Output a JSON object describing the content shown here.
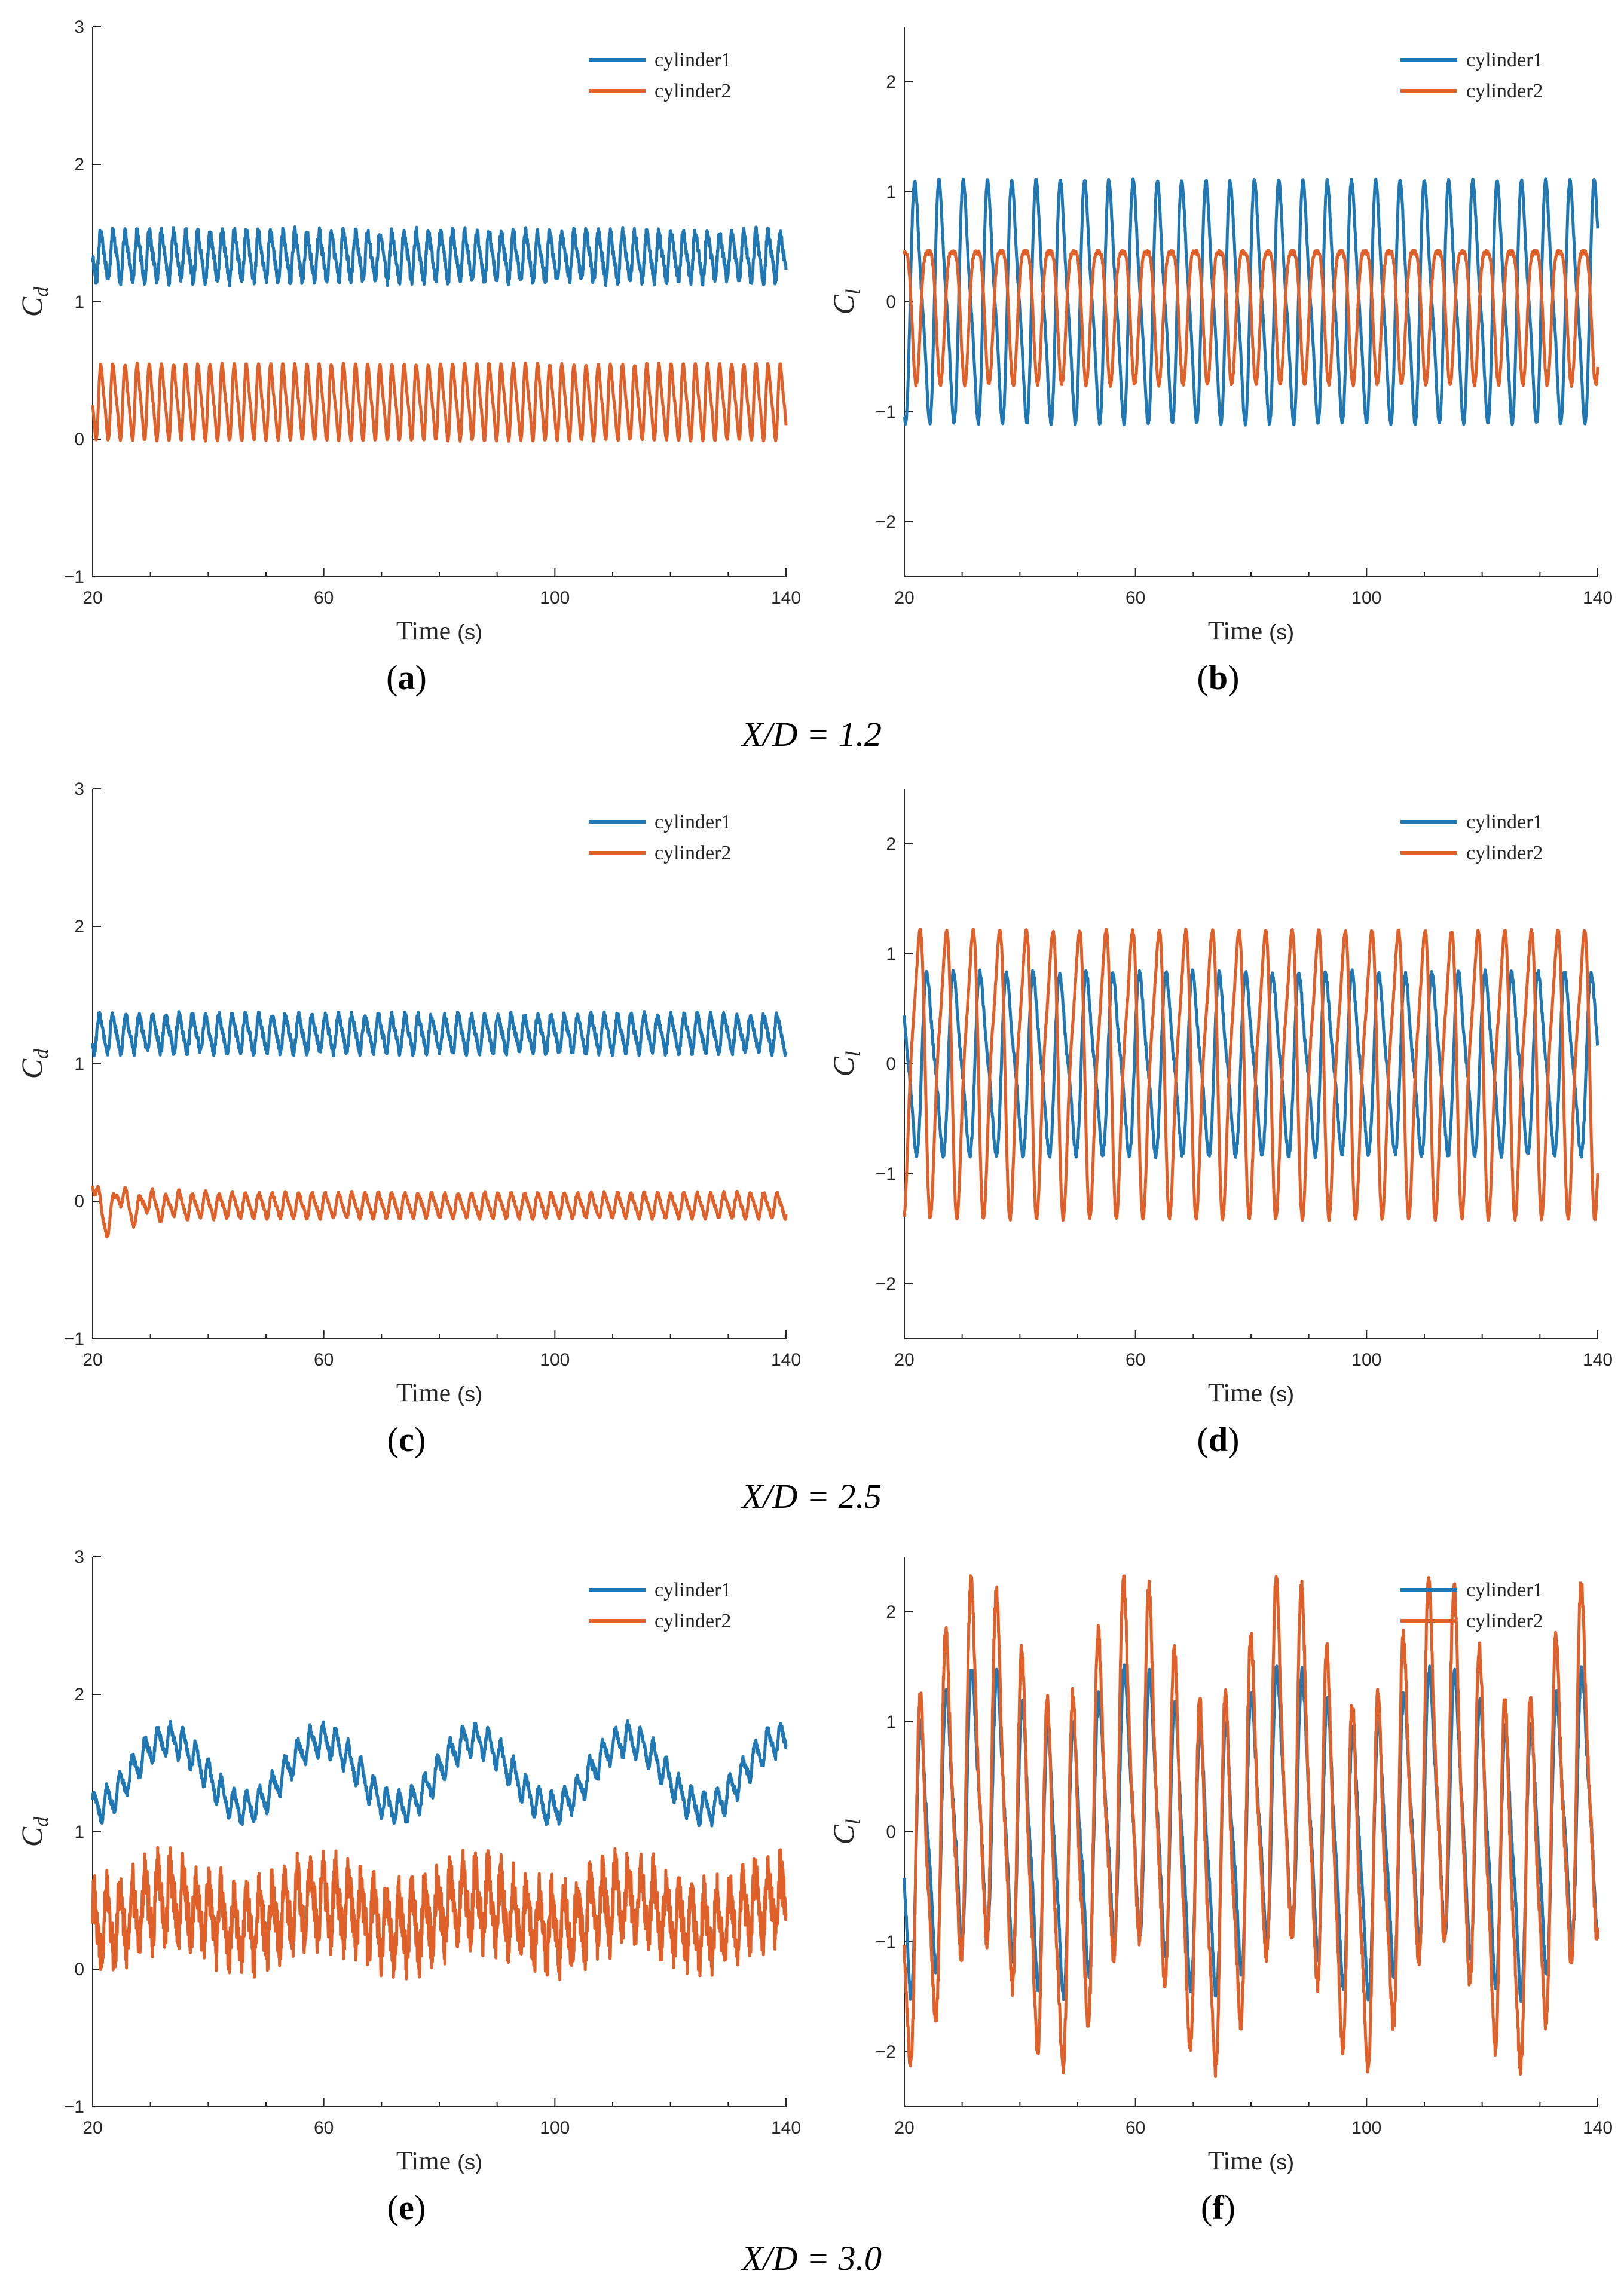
{
  "colors": {
    "cylinder1": "#1f77b4",
    "cylinder2": "#e0602a",
    "axis": "#262626"
  },
  "group_labels": [
    "X/D = 1.2",
    "X/D = 2.5",
    "X/D = 3.0"
  ],
  "captions": [
    "a",
    "b",
    "c",
    "d",
    "e",
    "f"
  ],
  "chart_data": [
    {
      "type": "line",
      "panel": "a",
      "xlabel": "Time",
      "xunit": "(s)",
      "ylabel_main": "C",
      "ylabel_sub": "d",
      "xlim": [
        20,
        140
      ],
      "ylim": [
        -1,
        3
      ],
      "xticks": [
        20,
        60,
        100,
        140
      ],
      "yticks": [
        -1,
        0,
        1,
        2,
        3
      ],
      "yticklabels": [
        "−1",
        "0",
        "1",
        "2",
        "3"
      ],
      "legend": [
        "cylinder1",
        "cylinder2"
      ],
      "series": [
        {
          "name": "cylinder1",
          "mean": 1.33,
          "amp": 0.16,
          "period": 2.1,
          "noise": 0.04,
          "lowmod": 0,
          "lowperiod": 25,
          "seed": 1
        },
        {
          "name": "cylinder2",
          "mean": 0.27,
          "amp": 0.25,
          "period": 2.1,
          "noise": 0.01,
          "lowmod": 0,
          "lowperiod": 25,
          "seed": 2
        }
      ]
    },
    {
      "type": "line",
      "panel": "b",
      "xlabel": "Time",
      "xunit": "(s)",
      "ylabel_main": "C",
      "ylabel_sub": "l",
      "xlim": [
        20,
        140
      ],
      "ylim": [
        -2.5,
        2.5
      ],
      "xticks": [
        20,
        60,
        100,
        140
      ],
      "yticks": [
        -2,
        -1,
        0,
        1,
        2
      ],
      "yticklabels": [
        "−2",
        "−1",
        "0",
        "1",
        "2"
      ],
      "legend": [
        "cylinder1",
        "cylinder2"
      ],
      "series": [
        {
          "name": "cylinder1",
          "mean": 0,
          "amp": 1.0,
          "period": 4.2,
          "noise": 0.02,
          "lowmod": 0,
          "lowperiod": 25,
          "seed": 3
        },
        {
          "name": "cylinder2",
          "mean": 0,
          "amp": 0.6,
          "period": 4.2,
          "phase": 3.14,
          "noise": 0.02,
          "lowmod": 0,
          "lowperiod": 25,
          "seed": 4
        }
      ]
    },
    {
      "type": "line",
      "panel": "c",
      "xlabel": "Time",
      "xunit": "(s)",
      "ylabel_main": "C",
      "ylabel_sub": "d",
      "xlim": [
        20,
        140
      ],
      "ylim": [
        -1,
        3
      ],
      "xticks": [
        20,
        60,
        100,
        140
      ],
      "yticks": [
        -1,
        0,
        1,
        2,
        3
      ],
      "yticklabels": [
        "−1",
        "0",
        "1",
        "2",
        "3"
      ],
      "legend": [
        "cylinder1",
        "cylinder2"
      ],
      "series": [
        {
          "name": "cylinder1",
          "mean": 1.22,
          "amp": 0.12,
          "period": 2.3,
          "noise": 0.03,
          "lowmod": 0,
          "lowperiod": 25,
          "seed": 5
        },
        {
          "name": "cylinder2",
          "mean": -0.03,
          "amp": 0.08,
          "period": 2.3,
          "noise": 0.015,
          "lowmod": 0,
          "lowperiod": 25,
          "seed": 6,
          "transient": 0.2
        }
      ]
    },
    {
      "type": "line",
      "panel": "d",
      "xlabel": "Time",
      "xunit": "(s)",
      "ylabel_main": "C",
      "ylabel_sub": "l",
      "xlim": [
        20,
        140
      ],
      "ylim": [
        -2.5,
        2.5
      ],
      "xticks": [
        20,
        60,
        100,
        140
      ],
      "yticks": [
        -2,
        -1,
        0,
        1,
        2
      ],
      "yticklabels": [
        "−2",
        "−1",
        "0",
        "1",
        "2"
      ],
      "legend": [
        "cylinder1",
        "cylinder2"
      ],
      "series": [
        {
          "name": "cylinder1",
          "mean": 0,
          "amp": 0.75,
          "period": 4.6,
          "noise": 0.03,
          "lowmod": 0,
          "lowperiod": 25,
          "seed": 7
        },
        {
          "name": "cylinder2",
          "mean": 0,
          "amp": 1.2,
          "period": 4.6,
          "phase": 2.4,
          "noise": 0.02,
          "lowmod": 0,
          "lowperiod": 25,
          "seed": 8
        }
      ]
    },
    {
      "type": "line",
      "panel": "e",
      "xlabel": "Time",
      "xunit": "(s)",
      "ylabel_main": "C",
      "ylabel_sub": "d",
      "xlim": [
        20,
        140
      ],
      "ylim": [
        -1,
        3
      ],
      "xticks": [
        20,
        60,
        100,
        140
      ],
      "yticks": [
        -1,
        0,
        1,
        2,
        3
      ],
      "yticklabels": [
        "−1",
        "0",
        "1",
        "2",
        "3"
      ],
      "legend": [
        "cylinder1",
        "cylinder2"
      ],
      "series": [
        {
          "name": "cylinder1",
          "mean": 1.42,
          "amp": 0.1,
          "period": 2.2,
          "noise": 0.03,
          "lowmod": 0.25,
          "lowperiod": 26.5,
          "seed": 9
        },
        {
          "name": "cylinder2",
          "mean": 0.4,
          "amp": 0.22,
          "period": 2.2,
          "noise": 0.16,
          "lowmod": 0.1,
          "lowperiod": 26.5,
          "seed": 10
        }
      ]
    },
    {
      "type": "line",
      "panel": "f",
      "xlabel": "Time",
      "xunit": "(s)",
      "ylabel_main": "C",
      "ylabel_sub": "l",
      "xlim": [
        20,
        140
      ],
      "ylim": [
        -2.5,
        2.5
      ],
      "xticks": [
        20,
        60,
        100,
        140
      ],
      "yticks": [
        -2,
        -1,
        0,
        1,
        2
      ],
      "yticklabels": [
        "−2",
        "−1",
        "0",
        "1",
        "2"
      ],
      "legend": [
        "cylinder1",
        "cylinder2"
      ],
      "series": [
        {
          "name": "cylinder1",
          "mean": 0,
          "amp": 1.1,
          "period": 4.4,
          "noise": 0.05,
          "lowmod": 0.3,
          "lowperiod": 26.5,
          "seed": 11
        },
        {
          "name": "cylinder2",
          "mean": 0,
          "amp": 1.5,
          "period": 4.4,
          "phase": 0.2,
          "noise": 0.08,
          "lowmod": 0.6,
          "lowperiod": 26.5,
          "seed": 12
        }
      ]
    }
  ]
}
